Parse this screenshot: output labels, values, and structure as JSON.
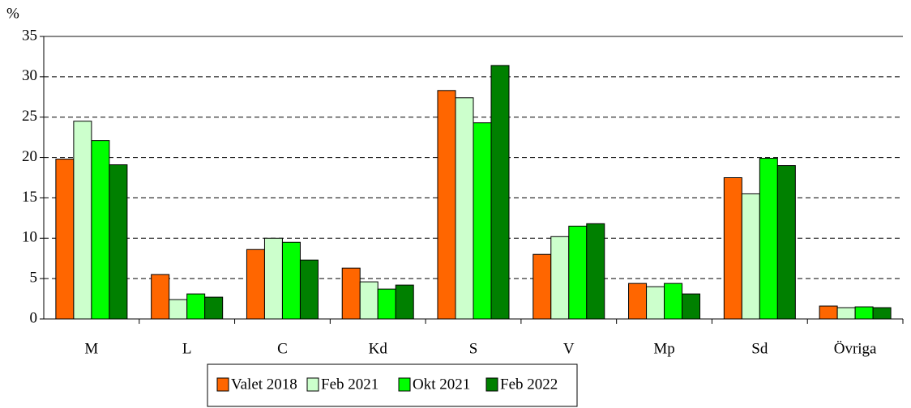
{
  "chart_data": {
    "type": "bar",
    "y_label": "%",
    "categories": [
      "M",
      "L",
      "C",
      "Kd",
      "S",
      "V",
      "Mp",
      "Sd",
      "Övriga"
    ],
    "series": [
      {
        "name": "Valet 2018",
        "color": "#ff6600",
        "values": [
          19.8,
          5.5,
          8.6,
          6.3,
          28.3,
          8.0,
          4.4,
          17.5,
          1.6
        ]
      },
      {
        "name": "Feb 2021",
        "color": "#ccffcc",
        "values": [
          24.5,
          2.4,
          10.0,
          4.6,
          27.4,
          10.2,
          4.0,
          15.5,
          1.4
        ]
      },
      {
        "name": "Okt 2021",
        "color": "#00ff00",
        "values": [
          22.1,
          3.1,
          9.5,
          3.7,
          24.3,
          11.5,
          4.4,
          19.9,
          1.5
        ]
      },
      {
        "name": "Feb 2022",
        "color": "#008000",
        "values": [
          19.1,
          2.7,
          7.3,
          4.2,
          31.4,
          11.8,
          3.1,
          19.0,
          1.4
        ]
      }
    ],
    "ylim": [
      0,
      35
    ],
    "yticks": [
      0,
      5,
      10,
      15,
      20,
      25,
      30,
      35
    ],
    "grid": true,
    "legend": "bottom"
  }
}
